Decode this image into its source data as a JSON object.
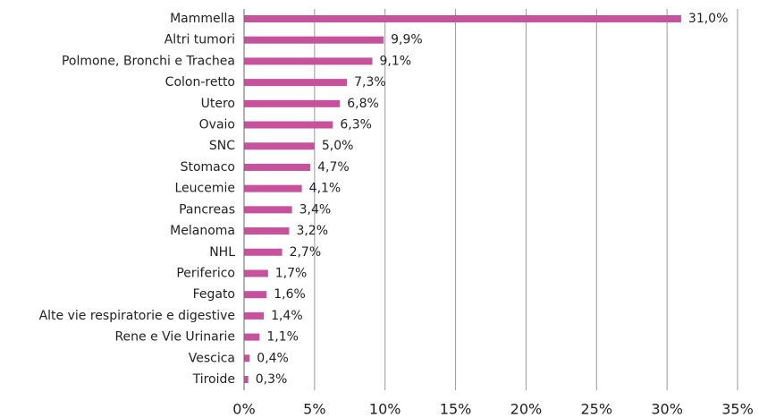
{
  "chart_data": {
    "type": "hbar",
    "categories": [
      "Mammella",
      "Altri tumori",
      "Polmone, Bronchi e Trachea",
      "Colon-retto",
      "Utero",
      "Ovaio",
      "SNC",
      "Stomaco",
      "Leucemie",
      "Pancreas",
      "Melanoma",
      "NHL",
      "Periferico",
      "Fegato",
      "Alte vie respiratorie e digestive",
      "Rene e Vie Urinarie",
      "Vescica",
      "Tiroide"
    ],
    "values": [
      31.0,
      9.9,
      9.1,
      7.3,
      6.8,
      6.3,
      5.0,
      4.7,
      4.1,
      3.4,
      3.2,
      2.7,
      1.7,
      1.6,
      1.4,
      1.1,
      0.4,
      0.3
    ],
    "value_labels": [
      "31,0%",
      "9,9%",
      "9,1%",
      "7,3%",
      "6,8%",
      "6,3%",
      "5,0%",
      "4,7%",
      "4,1%",
      "3,4%",
      "3,2%",
      "2,7%",
      "1,7%",
      "1,6%",
      "1,4%",
      "1,1%",
      "0,4%",
      "0,3%"
    ],
    "color": "#c8519e",
    "xlim": [
      0,
      35
    ],
    "xticks": [
      {
        "value": 0,
        "label": "0%"
      },
      {
        "value": 5,
        "label": "5%"
      },
      {
        "value": 10,
        "label": "10%"
      },
      {
        "value": 15,
        "label": "15%"
      },
      {
        "value": 20,
        "label": "20%"
      },
      {
        "value": 25,
        "label": "25%"
      },
      {
        "value": 30,
        "label": "30%"
      },
      {
        "value": 35,
        "label": "35%"
      }
    ],
    "grid": true
  }
}
